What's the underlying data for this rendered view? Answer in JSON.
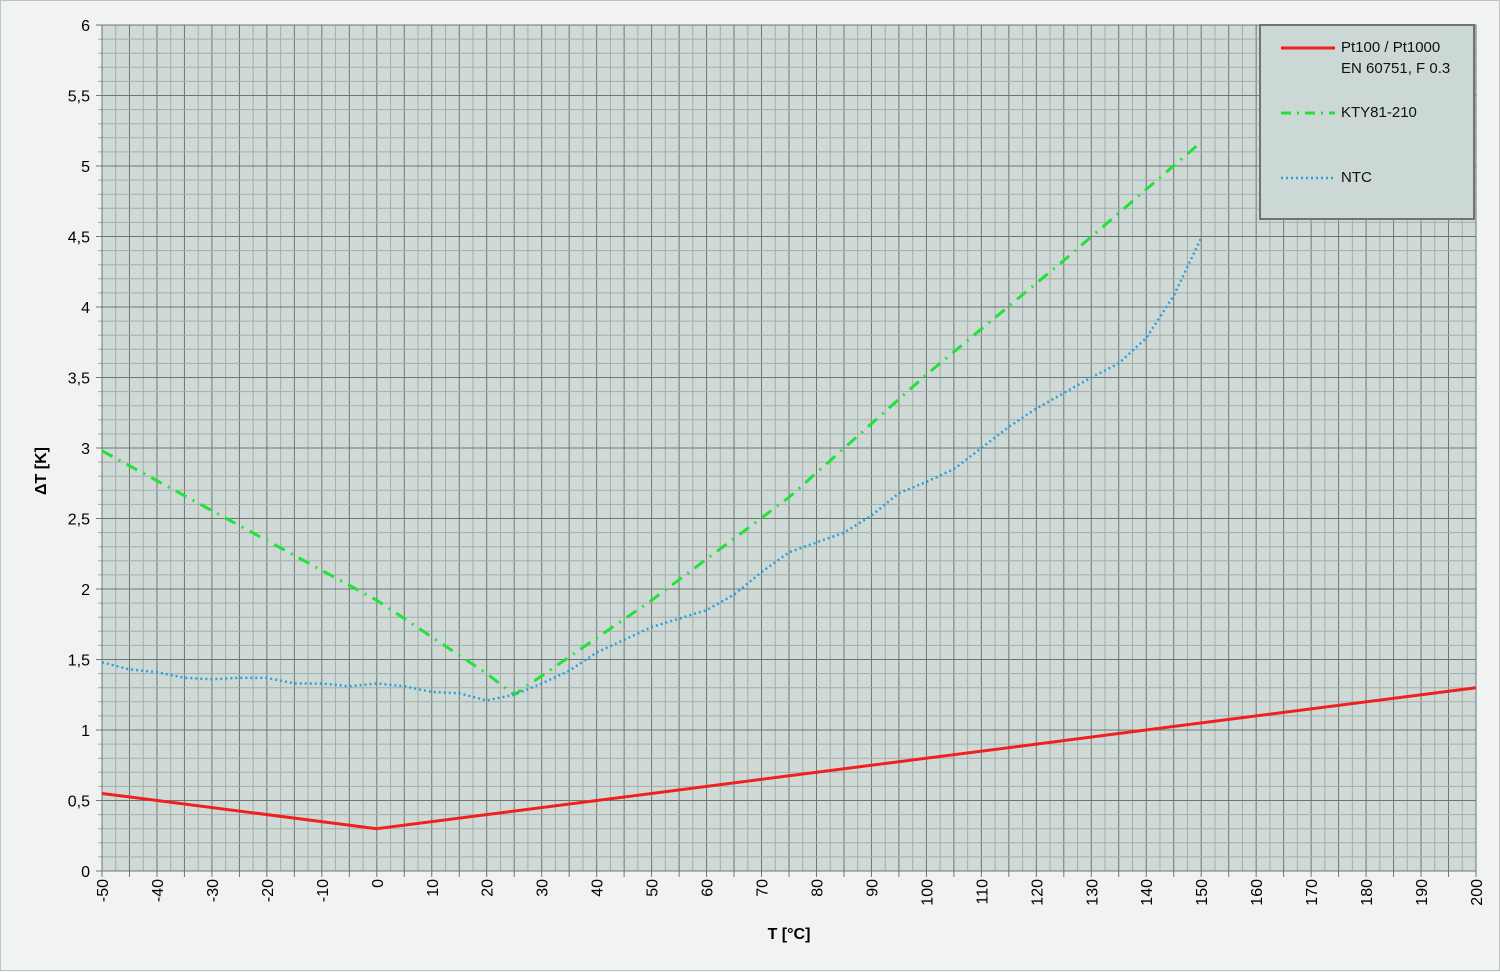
{
  "chart_data": {
    "type": "line",
    "xlabel": "T [°C]",
    "ylabel": "ΔT [K]",
    "xlim": [
      -50,
      200
    ],
    "ylim": [
      0,
      6
    ],
    "xticks": [
      -50,
      -40,
      -30,
      -20,
      -10,
      0,
      10,
      20,
      30,
      40,
      50,
      60,
      70,
      80,
      90,
      100,
      110,
      120,
      130,
      140,
      150,
      160,
      170,
      180,
      190,
      200
    ],
    "yticks": [
      "0",
      "0,5",
      "1",
      "1,5",
      "2",
      "2,5",
      "3",
      "3,5",
      "4",
      "4,5",
      "5",
      "5,5",
      "6"
    ],
    "grid": true,
    "legend_position": "top-right",
    "plot_background": "#cfdad7",
    "series": [
      {
        "name": "Pt100 / Pt1000\nEN 60751, F 0.3",
        "color": "#ee2020",
        "style": "solid",
        "x": [
          -50,
          0,
          200
        ],
        "y": [
          0.55,
          0.3,
          1.3
        ]
      },
      {
        "name": "KTY81-210",
        "color": "#22e23a",
        "style": "dashdot",
        "x": [
          -50,
          -25,
          0,
          20,
          25,
          50,
          75,
          100,
          125,
          150
        ],
        "y": [
          2.98,
          2.45,
          1.92,
          1.4,
          1.25,
          1.92,
          2.65,
          3.52,
          4.33,
          5.17
        ]
      },
      {
        "name": "NTC",
        "color": "#2aa0d8",
        "style": "dotted",
        "x": [
          -50,
          -45,
          -40,
          -35,
          -30,
          -25,
          -20,
          -15,
          -10,
          -5,
          0,
          5,
          10,
          15,
          20,
          25,
          30,
          35,
          40,
          45,
          50,
          55,
          60,
          65,
          70,
          75,
          80,
          85,
          90,
          95,
          100,
          105,
          110,
          115,
          120,
          125,
          130,
          135,
          140,
          145,
          150
        ],
        "y": [
          1.48,
          1.43,
          1.41,
          1.37,
          1.36,
          1.37,
          1.37,
          1.33,
          1.33,
          1.31,
          1.33,
          1.31,
          1.27,
          1.26,
          1.21,
          1.25,
          1.33,
          1.42,
          1.55,
          1.64,
          1.73,
          1.79,
          1.85,
          1.96,
          2.12,
          2.26,
          2.33,
          2.4,
          2.52,
          2.68,
          2.76,
          2.85,
          3.0,
          3.15,
          3.28,
          3.39,
          3.5,
          3.6,
          3.78,
          4.08,
          4.49
        ]
      }
    ]
  }
}
